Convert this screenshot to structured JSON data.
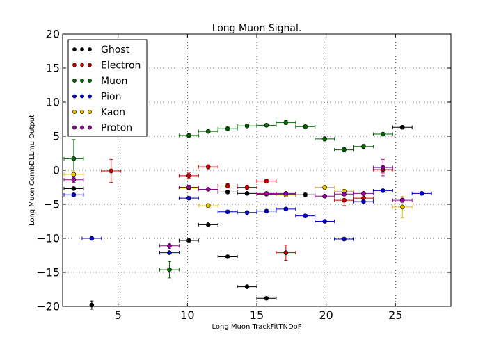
{
  "chart_data": {
    "type": "scatter",
    "title": "Long Muon Signal.",
    "xlabel": "Long Muon TrackFitTNDoF",
    "ylabel": "Long Muon CombDLLmu Output",
    "xlim": [
      1,
      29
    ],
    "ylim": [
      -20,
      20
    ],
    "xticks": [
      5,
      10,
      15,
      20,
      25
    ],
    "yticks": [
      -20,
      -15,
      -10,
      -5,
      0,
      5,
      10,
      15,
      20
    ],
    "grid": true,
    "legend_position": "top-left",
    "series": [
      {
        "name": "Ghost",
        "color": "#000000",
        "points": [
          {
            "x": 1.8,
            "y": -2.7,
            "xerr": 0.7,
            "yerr": 0
          },
          {
            "x": 3.1,
            "y": -19.8,
            "xerr": 0,
            "yerr": 0.6
          },
          {
            "x": 10.1,
            "y": -10.3,
            "xerr": 0.7,
            "yerr": 0
          },
          {
            "x": 11.5,
            "y": -8.0,
            "xerr": 0.7,
            "yerr": 0
          },
          {
            "x": 12.9,
            "y": -12.7,
            "xerr": 0.7,
            "yerr": 0
          },
          {
            "x": 14.3,
            "y": -17.1,
            "xerr": 0.7,
            "yerr": 0
          },
          {
            "x": 15.7,
            "y": -18.8,
            "xerr": 0.7,
            "yerr": 0
          },
          {
            "x": 12.9,
            "y": -3.2,
            "xerr": 0.7,
            "yerr": 0
          },
          {
            "x": 14.3,
            "y": -3.4,
            "xerr": 0.7,
            "yerr": 0
          },
          {
            "x": 15.7,
            "y": -3.5,
            "xerr": 0.7,
            "yerr": 0
          },
          {
            "x": 17.1,
            "y": -3.5,
            "xerr": 0.7,
            "yerr": 0
          },
          {
            "x": 18.5,
            "y": -3.6,
            "xerr": 0.7,
            "yerr": 0
          },
          {
            "x": 25.5,
            "y": 6.3,
            "xerr": 0.7,
            "yerr": 0
          }
        ]
      },
      {
        "name": "Electron",
        "color": "#cc0000",
        "points": [
          {
            "x": 4.5,
            "y": -0.1,
            "xerr": 0.7,
            "yerr": 1.7
          },
          {
            "x": 10.1,
            "y": -0.8,
            "xerr": 0.7,
            "yerr": 0.4
          },
          {
            "x": 11.5,
            "y": 0.5,
            "xerr": 0.7,
            "yerr": 0.3
          },
          {
            "x": 12.9,
            "y": -2.3,
            "xerr": 0.7,
            "yerr": 0.3
          },
          {
            "x": 14.3,
            "y": -2.5,
            "xerr": 0.7,
            "yerr": 0.3
          },
          {
            "x": 15.7,
            "y": -1.6,
            "xerr": 0.7,
            "yerr": 0.3
          },
          {
            "x": 17.1,
            "y": -12.1,
            "xerr": 0.7,
            "yerr": 1.1
          },
          {
            "x": 21.3,
            "y": -4.4,
            "xerr": 0.7,
            "yerr": 0.8
          },
          {
            "x": 22.7,
            "y": -4.1,
            "xerr": 0.7,
            "yerr": 0.4
          },
          {
            "x": 24.1,
            "y": 0.1,
            "xerr": 0.7,
            "yerr": 0.5
          }
        ]
      },
      {
        "name": "Muon",
        "color": "#006600",
        "points": [
          {
            "x": 1.8,
            "y": 1.7,
            "xerr": 0.7,
            "yerr": 2.8
          },
          {
            "x": 8.7,
            "y": -14.6,
            "xerr": 0.7,
            "yerr": 1.2
          },
          {
            "x": 10.1,
            "y": 5.1,
            "xerr": 0.7,
            "yerr": 0.2
          },
          {
            "x": 11.5,
            "y": 5.7,
            "xerr": 0.7,
            "yerr": 0.2
          },
          {
            "x": 12.9,
            "y": 6.1,
            "xerr": 0.7,
            "yerr": 0.2
          },
          {
            "x": 14.3,
            "y": 6.5,
            "xerr": 0.7,
            "yerr": 0.2
          },
          {
            "x": 15.7,
            "y": 6.6,
            "xerr": 0.7,
            "yerr": 0.2
          },
          {
            "x": 17.1,
            "y": 7.0,
            "xerr": 0.7,
            "yerr": 0.3
          },
          {
            "x": 18.5,
            "y": 6.4,
            "xerr": 0.7,
            "yerr": 0.2
          },
          {
            "x": 19.9,
            "y": 4.6,
            "xerr": 0.7,
            "yerr": 0.3
          },
          {
            "x": 21.3,
            "y": 3.0,
            "xerr": 0.7,
            "yerr": 0.3
          },
          {
            "x": 22.7,
            "y": 3.5,
            "xerr": 0.7,
            "yerr": 0.3
          },
          {
            "x": 24.1,
            "y": 5.3,
            "xerr": 0.7,
            "yerr": 0.2
          }
        ]
      },
      {
        "name": "Pion",
        "color": "#0000cc",
        "points": [
          {
            "x": 1.8,
            "y": -3.6,
            "xerr": 0.7,
            "yerr": 0
          },
          {
            "x": 3.1,
            "y": -10.0,
            "xerr": 0.7,
            "yerr": 0
          },
          {
            "x": 8.7,
            "y": -12.1,
            "xerr": 0.7,
            "yerr": 0
          },
          {
            "x": 10.1,
            "y": -4.1,
            "xerr": 0.7,
            "yerr": 0.2
          },
          {
            "x": 12.9,
            "y": -6.1,
            "xerr": 0.7,
            "yerr": 0.2
          },
          {
            "x": 14.3,
            "y": -6.2,
            "xerr": 0.7,
            "yerr": 0.2
          },
          {
            "x": 15.7,
            "y": -6.0,
            "xerr": 0.7,
            "yerr": 0.2
          },
          {
            "x": 17.1,
            "y": -5.7,
            "xerr": 0.7,
            "yerr": 0.2
          },
          {
            "x": 18.5,
            "y": -6.7,
            "xerr": 0.7,
            "yerr": 0.2
          },
          {
            "x": 19.9,
            "y": -7.5,
            "xerr": 0.7,
            "yerr": 0.2
          },
          {
            "x": 21.3,
            "y": -10.1,
            "xerr": 0.7,
            "yerr": 0.2
          },
          {
            "x": 22.7,
            "y": -4.6,
            "xerr": 0.7,
            "yerr": 0.2
          },
          {
            "x": 24.1,
            "y": -3.0,
            "xerr": 0.7,
            "yerr": 0.2
          },
          {
            "x": 26.9,
            "y": -3.4,
            "xerr": 0.7,
            "yerr": 0.2
          }
        ]
      },
      {
        "name": "Kaon",
        "color": "#e6c200",
        "points": [
          {
            "x": 1.8,
            "y": -0.6,
            "xerr": 0.7,
            "yerr": 0.5
          },
          {
            "x": 10.1,
            "y": -2.6,
            "xerr": 0.7,
            "yerr": 0.3
          },
          {
            "x": 11.5,
            "y": -5.2,
            "xerr": 0.7,
            "yerr": 0.3
          },
          {
            "x": 17.1,
            "y": -3.6,
            "xerr": 0.7,
            "yerr": 0.3
          },
          {
            "x": 19.9,
            "y": -2.5,
            "xerr": 0.7,
            "yerr": 0.3
          },
          {
            "x": 21.3,
            "y": -3.1,
            "xerr": 0.7,
            "yerr": 0.3
          },
          {
            "x": 25.5,
            "y": -5.4,
            "xerr": 0.7,
            "yerr": 1.6
          }
        ]
      },
      {
        "name": "Proton",
        "color": "#990099",
        "points": [
          {
            "x": 1.8,
            "y": -1.4,
            "xerr": 0.7,
            "yerr": 0.4
          },
          {
            "x": 8.7,
            "y": -11.1,
            "xerr": 0.7,
            "yerr": 0.4
          },
          {
            "x": 10.1,
            "y": -2.5,
            "xerr": 0.7,
            "yerr": 0.3
          },
          {
            "x": 11.5,
            "y": -2.8,
            "xerr": 0.7,
            "yerr": 0.2
          },
          {
            "x": 15.7,
            "y": -3.4,
            "xerr": 0.7,
            "yerr": 0.2
          },
          {
            "x": 17.1,
            "y": -3.4,
            "xerr": 0.7,
            "yerr": 0.2
          },
          {
            "x": 19.9,
            "y": -3.8,
            "xerr": 0.7,
            "yerr": 0.2
          },
          {
            "x": 21.3,
            "y": -3.5,
            "xerr": 0.7,
            "yerr": 0.2
          },
          {
            "x": 22.7,
            "y": -3.4,
            "xerr": 0.7,
            "yerr": 0.2
          },
          {
            "x": 24.1,
            "y": 0.4,
            "xerr": 0.7,
            "yerr": 1.2
          },
          {
            "x": 25.5,
            "y": -4.4,
            "xerr": 0.7,
            "yerr": 0.3
          }
        ]
      }
    ]
  }
}
